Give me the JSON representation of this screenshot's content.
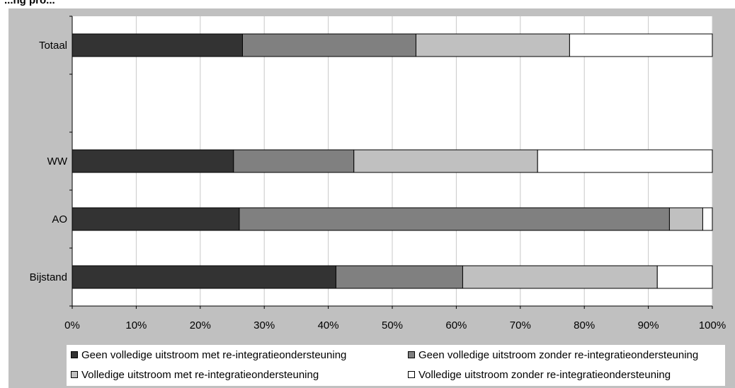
{
  "header": {
    "clipped_title": "...ng pro..."
  },
  "chart_data": {
    "type": "bar",
    "orientation": "horizontal",
    "stacked": true,
    "percent": true,
    "categories": [
      "Totaal",
      "",
      "WW",
      "AO",
      "Bijstand"
    ],
    "series": [
      {
        "name": "Geen volledige uitstroom met re-integratieondersteuning",
        "color": "#333333",
        "values": [
          26.6,
          null,
          25.2,
          26.1,
          41.2
        ]
      },
      {
        "name": "Geen volledige uitstroom zonder re-integratieondersteuning",
        "color": "#808080",
        "values": [
          27.1,
          null,
          18.8,
          67.2,
          19.8
        ]
      },
      {
        "name": "Volledige uitstroom met re-integratieondersteuning",
        "color": "#c0c0c0",
        "values": [
          24.0,
          null,
          28.7,
          5.2,
          30.4
        ]
      },
      {
        "name": "Volledige uitstroom zonder re-integratieondersteuning",
        "color": "#ffffff",
        "values": [
          22.3,
          null,
          27.3,
          1.5,
          8.6
        ]
      }
    ],
    "xlim": [
      0,
      100
    ],
    "x_ticks": [
      "0%",
      "10%",
      "20%",
      "30%",
      "40%",
      "50%",
      "60%",
      "70%",
      "80%",
      "90%",
      "100%"
    ],
    "grid": "vertical",
    "legend_position": "bottom",
    "title": "",
    "xlabel": "",
    "ylabel": ""
  }
}
